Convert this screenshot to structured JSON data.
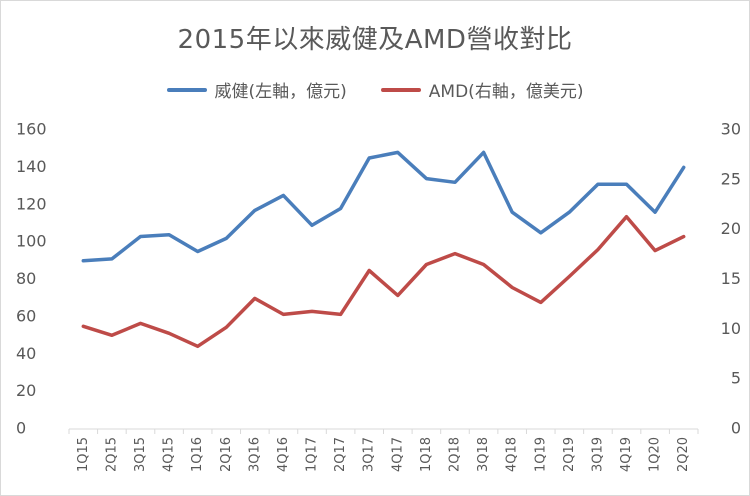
{
  "chart_data": {
    "type": "line",
    "title": "2015年以來威健及AMD營收對比",
    "categories": [
      "1Q15",
      "2Q15",
      "3Q15",
      "4Q15",
      "1Q16",
      "2Q16",
      "3Q16",
      "4Q16",
      "1Q17",
      "2Q17",
      "3Q17",
      "4Q17",
      "1Q18",
      "2Q18",
      "3Q18",
      "4Q18",
      "1Q19",
      "2Q19",
      "3Q19",
      "4Q19",
      "1Q20",
      "2Q20"
    ],
    "series": [
      {
        "name": "威健(左軸，億元)",
        "axis": "left",
        "color": "#4a7ebb",
        "values": [
          90,
          91,
          103,
          104,
          95,
          102,
          117,
          125,
          109,
          118,
          145,
          148,
          134,
          132,
          148,
          116,
          105,
          116,
          131,
          131,
          116,
          140
        ]
      },
      {
        "name": "AMD(右軸，億美元)",
        "axis": "right",
        "color": "#be4b48",
        "values": [
          10.3,
          9.4,
          10.6,
          9.6,
          8.3,
          10.2,
          13.1,
          11.5,
          11.8,
          11.5,
          15.9,
          13.4,
          16.5,
          17.6,
          16.5,
          14.2,
          12.7,
          15.3,
          18.0,
          21.3,
          17.9,
          19.3
        ]
      }
    ],
    "y_left": {
      "min": 0,
      "max": 160,
      "step": 20,
      "ticks": [
        "0",
        "20",
        "40",
        "60",
        "80",
        "100",
        "120",
        "140",
        "160"
      ]
    },
    "y_right": {
      "min": 0,
      "max": 30,
      "step": 5,
      "ticks": [
        "0",
        "5",
        "10",
        "15",
        "20",
        "25",
        "30"
      ]
    },
    "grid": false,
    "legend_position": "top"
  }
}
